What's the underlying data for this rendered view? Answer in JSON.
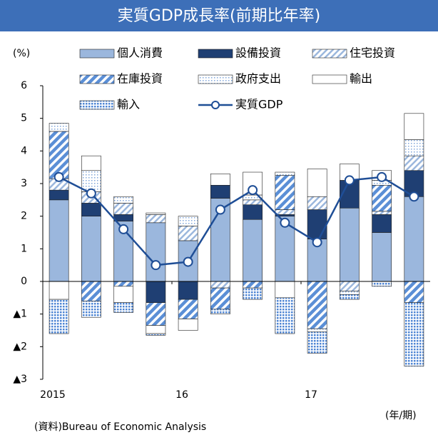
{
  "chart_data": {
    "type": "bar",
    "title": "実質GDP成長率(前期比年率)",
    "y_label": "(%)",
    "x_label": "(年/期)",
    "source": "(資料)Bureau of Economic Analysis",
    "categories": [
      "2015",
      null,
      null,
      null,
      "16",
      null,
      null,
      null,
      "17",
      null,
      null,
      null
    ],
    "stacked": true,
    "series": [
      {
        "name": "個人消費",
        "color": "#9bb7dd",
        "pattern": "solid",
        "values": [
          2.5,
          2.0,
          1.85,
          1.8,
          1.25,
          2.55,
          1.9,
          2.0,
          1.3,
          2.25,
          1.5,
          2.6
        ]
      },
      {
        "name": "設備投資",
        "color": "#1f3f73",
        "pattern": "solid",
        "values": [
          0.3,
          0.4,
          0.2,
          -0.65,
          -0.55,
          0.4,
          0.45,
          0.05,
          0.9,
          0.85,
          0.55,
          0.8
        ]
      },
      {
        "name": "住宅投資",
        "color": "#9bb7dd",
        "pattern": "hatch",
        "values": [
          0.35,
          0.35,
          0.35,
          0.25,
          0.45,
          -0.2,
          0.15,
          0.15,
          0.4,
          -0.3,
          0.1,
          0.45
        ]
      },
      {
        "name": "在庫投資",
        "color": "#5b8fd6",
        "pattern": "hatch",
        "values": [
          1.45,
          -0.6,
          -0.15,
          -0.7,
          -0.6,
          -0.65,
          -0.2,
          1.05,
          -1.45,
          0,
          0.8,
          -0.65
        ]
      },
      {
        "name": "政府支出",
        "color": "#7fa6da",
        "pattern": "dots",
        "values": [
          0.25,
          0.65,
          0.2,
          0.05,
          0.3,
          0,
          0.15,
          0.1,
          -0.1,
          -0.1,
          0.15,
          0.5
        ]
      },
      {
        "name": "輸出",
        "color": "#ffffff",
        "pattern": "solid",
        "values": [
          -0.55,
          0.45,
          -0.5,
          -0.25,
          -0.35,
          0.35,
          0.7,
          -0.5,
          0.85,
          0.5,
          0.3,
          0.8
        ]
      },
      {
        "name": "輸入",
        "color": "#4f86d4",
        "pattern": "dots",
        "values": [
          -1.05,
          -0.5,
          -0.3,
          -0.05,
          0,
          -0.15,
          -0.35,
          -1.1,
          -0.65,
          -0.15,
          -0.15,
          -1.95
        ]
      },
      {
        "name": "実質GDP",
        "type": "line",
        "color": "#1f4e96",
        "values": [
          3.2,
          2.7,
          1.6,
          0.5,
          0.6,
          2.2,
          2.8,
          1.8,
          1.2,
          3.1,
          3.2,
          2.6
        ]
      }
    ],
    "ylim": [
      -3,
      6
    ],
    "yticks": [
      {
        "value": -3,
        "label": "▲3"
      },
      {
        "value": -2,
        "label": "▲2"
      },
      {
        "value": -1,
        "label": "▲1"
      },
      0,
      1,
      2,
      3,
      4,
      5,
      6
    ],
    "grid": false
  }
}
